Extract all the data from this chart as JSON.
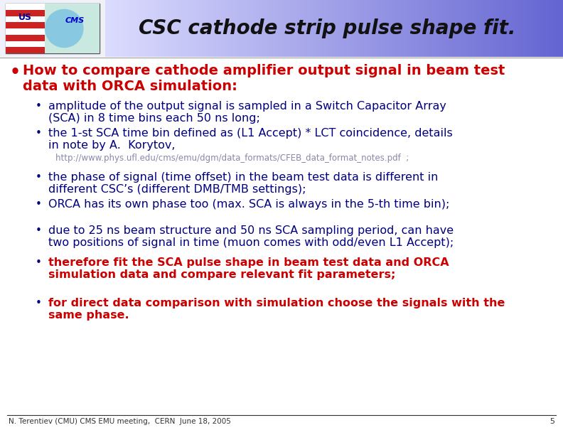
{
  "title": "CSC cathode strip pulse shape fit.",
  "title_color": "#111111",
  "bullet1_text_line1": "How to compare cathode amplifier output signal in beam test",
  "bullet1_text_line2": "data with ORCA simulation:",
  "bullet1_color": "#cc0000",
  "sub_bullets": [
    {
      "text": "amplitude of the output signal is sampled in a Switch Capacitor Array\n(SCA) in 8 time bins each 50 ns long;",
      "color": "#000080",
      "bold": false,
      "is_url": false,
      "indent": 1
    },
    {
      "text": "the 1-st SCA time bin defined as (L1 Accept) * LCT coincidence, details\nin note by A.  Korytov,",
      "color": "#000080",
      "bold": false,
      "is_url": false,
      "indent": 1
    },
    {
      "text": "http://www.phys.ufl.edu/cms/emu/dgm/data_formats/CFEB_data_format_notes.pdf  ;",
      "color": "#8888aa",
      "bold": false,
      "is_url": true,
      "indent": 1
    },
    {
      "text": "the phase of signal (time offset) in the beam test data is different in\ndifferent CSC’s (different DMB/TMB settings);",
      "color": "#000080",
      "bold": false,
      "is_url": false,
      "indent": 1
    },
    {
      "text": "ORCA has its own phase too (max. SCA is always in the 5-th time bin);",
      "color": "#000080",
      "bold": false,
      "is_url": false,
      "indent": 1
    },
    {
      "text": "due to 25 ns beam structure and 50 ns SCA sampling period, can have\ntwo positions of signal in time (muon comes with odd/even L1 Accept);",
      "color": "#000080",
      "bold": false,
      "is_url": false,
      "indent": 1
    },
    {
      "text": "therefore fit the SCA pulse shape in beam test data and ORCA\nsimulation data and compare relevant fit parameters;",
      "color": "#cc0000",
      "bold": true,
      "is_url": false,
      "indent": 1
    },
    {
      "text": "for direct data comparison with simulation choose the signals with the\nsame phase.",
      "color": "#cc0000",
      "bold": true,
      "is_url": false,
      "indent": 1
    }
  ],
  "footer_text": "N. Terentiev (CMU) CMS EMU meeting,  CERN  June 18, 2005",
  "page_number": "5",
  "bg_color": "#ffffff"
}
